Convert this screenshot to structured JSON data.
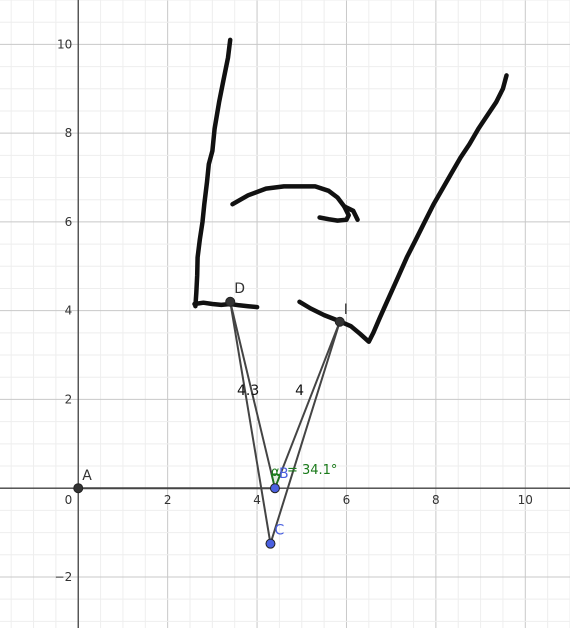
{
  "axes": {
    "x_range": [
      -1.75,
      11
    ],
    "y_range": [
      -3.15,
      11
    ],
    "x_ticks": [
      "2",
      "4",
      "6",
      "8",
      "10"
    ],
    "y_ticks": [
      "10",
      "8",
      "6",
      "4",
      "2",
      "−2"
    ],
    "origin_label": "0"
  },
  "points": [
    {
      "id": "A",
      "label": "A",
      "x": 0,
      "y": 0,
      "color": "#333333",
      "label_color": "#333333"
    },
    {
      "id": "B",
      "label": "B",
      "x": 4.4,
      "y": 0,
      "color": "#4a60e0",
      "label_color": "#4a60e0"
    },
    {
      "id": "C",
      "label": "C",
      "x": 4.3,
      "y": -1.25,
      "color": "#4a60e0",
      "label_color": "#4a60e0"
    },
    {
      "id": "D",
      "label": "D",
      "x": 3.4,
      "y": 4.2,
      "color": "#333333",
      "label_color": "#333333"
    },
    {
      "id": "I",
      "label": "I",
      "x": 5.85,
      "y": 3.75,
      "color": "#333333",
      "label_color": "#333333"
    }
  ],
  "segments": [
    {
      "from": "A",
      "to": "B"
    },
    {
      "from": "D",
      "to": "B"
    },
    {
      "from": "D",
      "to": "C"
    },
    {
      "from": "I",
      "to": "B"
    },
    {
      "from": "I",
      "to": "C"
    }
  ],
  "segment_labels": [
    {
      "text": "4.3",
      "x": 3.8,
      "y": 2.1
    },
    {
      "text": "4",
      "x": 4.95,
      "y": 2.1
    }
  ],
  "angle": {
    "letter": "α",
    "text": "= 34.1°",
    "vertex": "B",
    "color": "#1a7a1a"
  },
  "colors": {
    "grid_minor": "#eeeeee",
    "grid_major": "#c8c8c8",
    "axis": "#444444",
    "segment": "#444444",
    "ink": "#111111"
  },
  "strokes": [
    [
      [
        3.4,
        10.1
      ],
      [
        3.35,
        9.7
      ],
      [
        3.25,
        9.2
      ],
      [
        3.15,
        8.7
      ],
      [
        3.05,
        8.1
      ],
      [
        3.0,
        7.6
      ],
      [
        2.92,
        7.3
      ],
      [
        2.88,
        6.9
      ],
      [
        2.82,
        6.4
      ],
      [
        2.78,
        6.0
      ],
      [
        2.72,
        5.6
      ],
      [
        2.67,
        5.2
      ],
      [
        2.66,
        4.8
      ],
      [
        2.64,
        4.4
      ],
      [
        2.62,
        4.1
      ]
    ],
    [
      [
        2.6,
        4.15
      ],
      [
        2.8,
        4.18
      ],
      [
        3.0,
        4.15
      ],
      [
        3.2,
        4.13
      ],
      [
        3.4,
        4.15
      ],
      [
        3.6,
        4.12
      ],
      [
        3.8,
        4.1
      ],
      [
        4.0,
        4.08
      ]
    ],
    [
      [
        3.45,
        6.4
      ],
      [
        3.8,
        6.6
      ],
      [
        4.2,
        6.75
      ],
      [
        4.6,
        6.8
      ],
      [
        5.0,
        6.8
      ],
      [
        5.3,
        6.8
      ],
      [
        5.6,
        6.7
      ],
      [
        5.8,
        6.55
      ],
      [
        5.95,
        6.35
      ],
      [
        6.05,
        6.15
      ],
      [
        6.0,
        6.05
      ],
      [
        5.8,
        6.03
      ],
      [
        5.6,
        6.06
      ],
      [
        5.4,
        6.1
      ]
    ],
    [
      [
        5.95,
        6.35
      ],
      [
        6.15,
        6.25
      ],
      [
        6.25,
        6.05
      ]
    ],
    [
      [
        4.95,
        4.2
      ],
      [
        5.2,
        4.05
      ],
      [
        5.5,
        3.9
      ],
      [
        5.8,
        3.78
      ],
      [
        6.1,
        3.65
      ],
      [
        6.3,
        3.48
      ],
      [
        6.5,
        3.3
      ],
      [
        6.6,
        3.5
      ],
      [
        6.75,
        3.85
      ],
      [
        6.95,
        4.3
      ],
      [
        7.15,
        4.75
      ],
      [
        7.35,
        5.2
      ],
      [
        7.55,
        5.6
      ],
      [
        7.75,
        6.0
      ],
      [
        7.95,
        6.4
      ],
      [
        8.15,
        6.75
      ],
      [
        8.35,
        7.1
      ],
      [
        8.55,
        7.45
      ],
      [
        8.75,
        7.75
      ],
      [
        8.95,
        8.1
      ],
      [
        9.15,
        8.4
      ],
      [
        9.35,
        8.7
      ],
      [
        9.5,
        9.0
      ],
      [
        9.58,
        9.3
      ]
    ]
  ]
}
